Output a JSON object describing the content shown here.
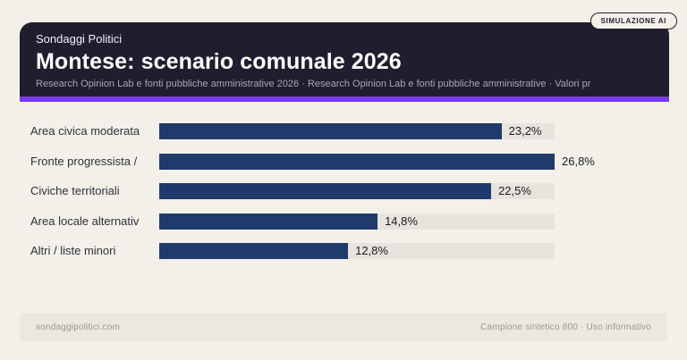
{
  "badge": {
    "label": "SIMULAZIONE AI"
  },
  "header": {
    "kicker": "Sondaggi Politici",
    "title": "Montese: scenario comunale 2026",
    "subtitle": "Research Opinion Lab e fonti pubbliche amministrative 2026 · Research Opinion Lab e fonti pubbliche amministrative · Valori pr"
  },
  "chart_data": {
    "type": "bar",
    "orientation": "horizontal",
    "title": "Montese: scenario comunale 2026",
    "categories": [
      "Area civica moderata",
      "Fronte progressista /",
      "Civiche territoriali",
      "Area locale alternativ",
      "Altri / liste minori"
    ],
    "values": [
      23.2,
      26.8,
      22.5,
      14.8,
      12.8
    ],
    "value_labels": [
      "23,2%",
      "26,8%",
      "22,5%",
      "14,8%",
      "12,8%"
    ],
    "xlim": [
      0,
      26.8
    ],
    "unit": "percent",
    "grid": false,
    "legend": false,
    "bar_color": "#1f3b6b",
    "track_color": "#e8e4dd"
  },
  "footer": {
    "left": "sondaggipolitici.com",
    "right": "Campione sintetico 800 · Uso informativo"
  },
  "colors": {
    "page_bg": "#f3f0ea",
    "panel_bg": "#201d2e",
    "accent_purple": "#7c3aed",
    "bar_navy": "#1f3b6b",
    "track_gray": "#e8e4dd",
    "footer_band": "#ebe8e2"
  }
}
